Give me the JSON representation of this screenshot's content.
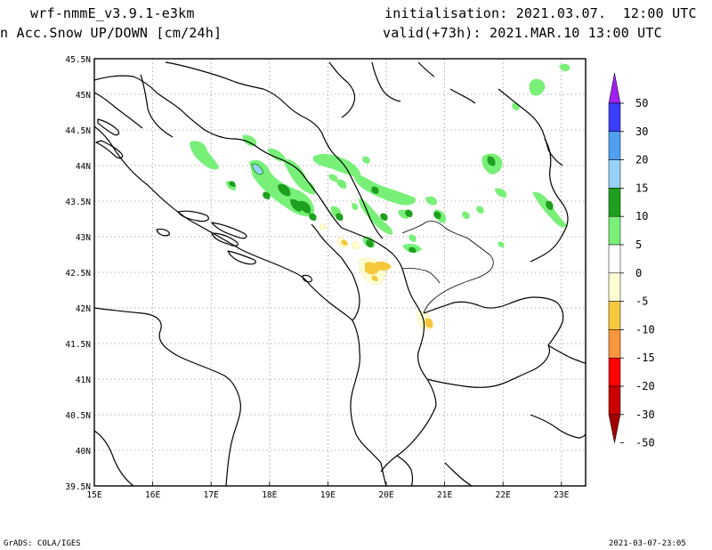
{
  "header": {
    "model": "wrf-nmmE_v3.9.1-e3km",
    "variable": "n Acc.Snow UP/DOWN [cm/24h]",
    "initialisation": "initialisation: 2021.03.07.  12:00 UTC",
    "valid": "valid(+73h): 2021.MAR.10 13:00 UTC"
  },
  "footer": {
    "credit": "GrADS: COLA/IGES",
    "timestamp": "2021-03-07-23:05"
  },
  "map": {
    "lon_labels": [
      "15E",
      "16E",
      "17E",
      "18E",
      "19E",
      "20E",
      "21E",
      "22E",
      "23E"
    ],
    "lat_labels": [
      "45.5N",
      "45N",
      "44.5N",
      "44N",
      "43.5N",
      "43N",
      "42.5N",
      "42N",
      "41.5N",
      "41N",
      "40.5N",
      "40N",
      "39.5N"
    ],
    "gridlines": "dotted"
  },
  "colorbar": {
    "labels": [
      "50",
      "30",
      "20",
      "15",
      "10",
      "5",
      "0",
      "-5",
      "-10",
      "-15",
      "-20",
      "-30",
      "-50"
    ],
    "colors": [
      "#a020f0",
      "#3c3cff",
      "#50a0f0",
      "#96d2fa",
      "#1ea01e",
      "#78f078",
      "#ffffff",
      "#ffffd2",
      "#f5c83c",
      "#fa963c",
      "#ff0000",
      "#c80000",
      "#a00000"
    ]
  },
  "palette": {
    "light_green": "#78f078",
    "dark_green": "#1ea01e",
    "light_blue": "#96d2fa",
    "yellow": "#f5c83c",
    "pale_yellow": "#ffffd2"
  }
}
